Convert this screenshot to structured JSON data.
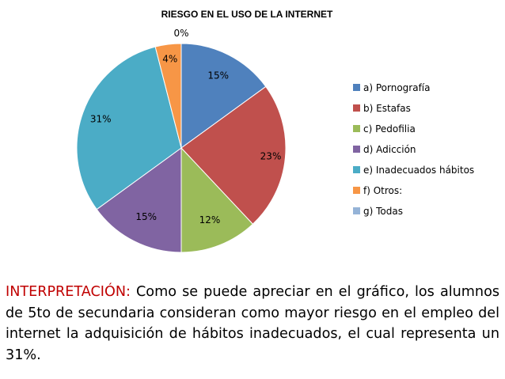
{
  "chart_data": {
    "type": "pie",
    "title": "RIESGO EN EL USO DE LA INTERNET",
    "legend_position": "right",
    "slices": [
      {
        "label": "a) Pornografía",
        "value": 15,
        "display": "15%",
        "color": "#4F81BD"
      },
      {
        "label": "b) Estafas",
        "value": 23,
        "display": "23%",
        "color": "#C0504D"
      },
      {
        "label": "c) Pedofilia",
        "value": 12,
        "display": "12%",
        "color": "#9BBB59"
      },
      {
        "label": "d) Adicción",
        "value": 15,
        "display": "15%",
        "color": "#8064A2"
      },
      {
        "label": "e) Inadecuados hábitos",
        "value": 31,
        "display": "31%",
        "color": "#4BACC6"
      },
      {
        "label": "f) Otros:",
        "value": 4,
        "display": "4%",
        "color": "#F79646"
      },
      {
        "label": "g) Todas",
        "value": 0,
        "display": "0%",
        "color": "#95B3D7"
      }
    ]
  },
  "interpretation": {
    "heading": "INTERPRETACIÓN:",
    "body": "Como se puede apreciar en el gráfico, los alumnos de 5to de secundaria consideran como mayor riesgo en el empleo del internet la adquisición de hábitos inadecuados, el cual representa un 31%."
  }
}
